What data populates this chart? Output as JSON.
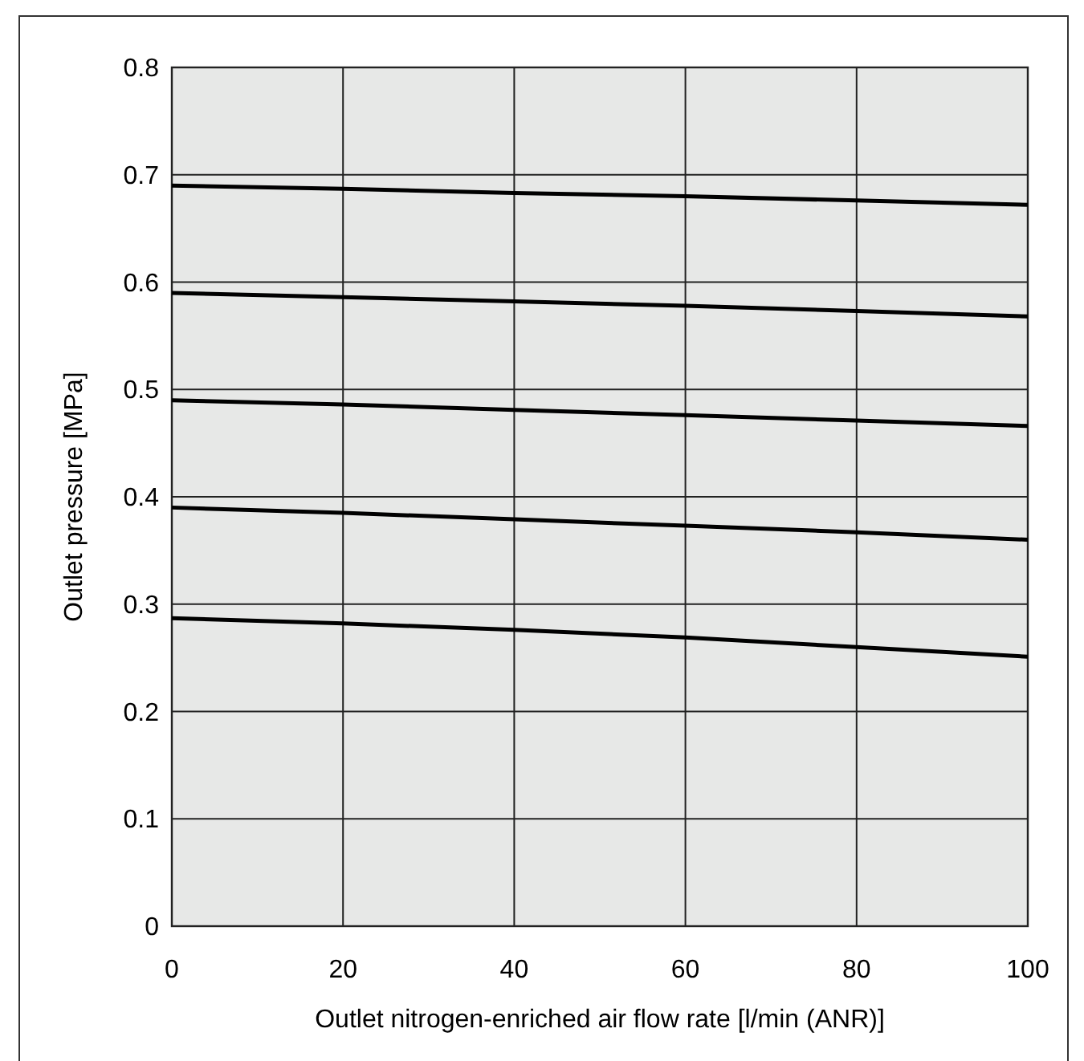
{
  "chart_data": {
    "type": "line",
    "xlabel": "Outlet nitrogen-enriched air flow rate [l/min (ANR)]",
    "ylabel": "Outlet pressure [MPa]",
    "x": [
      0,
      20,
      40,
      60,
      80,
      100
    ],
    "series": [
      {
        "color": "#000000",
        "values": [
          0.69,
          0.687,
          0.683,
          0.68,
          0.676,
          0.672
        ]
      },
      {
        "color": "#000000",
        "values": [
          0.59,
          0.586,
          0.582,
          0.578,
          0.573,
          0.568
        ]
      },
      {
        "color": "#000000",
        "values": [
          0.49,
          0.486,
          0.481,
          0.476,
          0.471,
          0.466
        ]
      },
      {
        "color": "#000000",
        "values": [
          0.39,
          0.385,
          0.379,
          0.373,
          0.367,
          0.36
        ]
      },
      {
        "color": "#000000",
        "values": [
          0.287,
          0.282,
          0.276,
          0.269,
          0.26,
          0.251
        ]
      }
    ],
    "xlim": [
      0,
      100
    ],
    "xticks": [
      0,
      20,
      40,
      60,
      80,
      100
    ],
    "ylim": [
      0,
      0.8
    ],
    "yticks": [
      0,
      {
        "value": 0.1,
        "label": "0.1"
      },
      {
        "value": 0.2,
        "label": "0.2"
      },
      {
        "value": 0.3,
        "label": "0.3"
      },
      {
        "value": 0.4,
        "label": "0.4"
      },
      {
        "value": 0.5,
        "label": "0.5"
      },
      {
        "value": 0.6,
        "label": "0.6"
      },
      {
        "value": 0.7,
        "label": "0.7"
      },
      {
        "value": 0.8,
        "label": "0.8"
      }
    ],
    "grid": true,
    "marker": "none",
    "line_style": "solid"
  }
}
